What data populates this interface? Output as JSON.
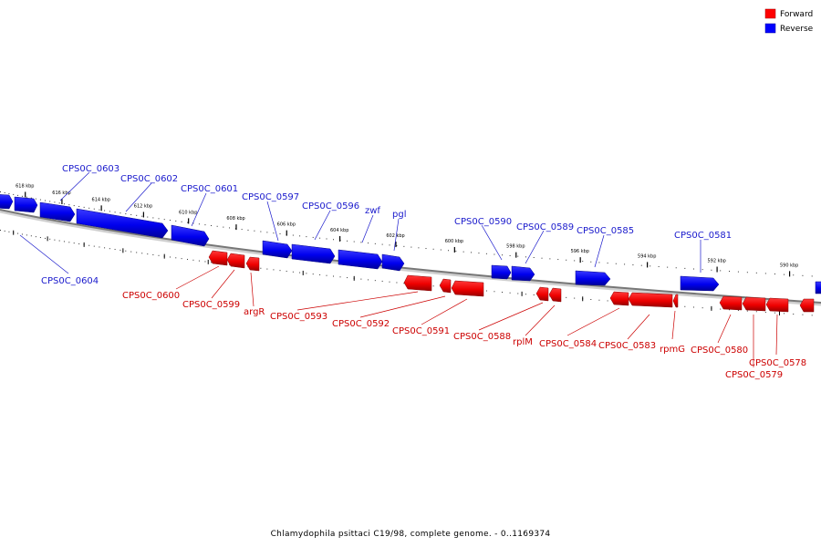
{
  "legend": {
    "forward": {
      "label": "Forward",
      "color": "#ff0000"
    },
    "reverse": {
      "label": "Reverse",
      "color": "#0000ff"
    }
  },
  "caption": "Chlamydophila psittaci C19/98, complete genome. - 0..1169374",
  "colors": {
    "forward_label": "#cc0000",
    "reverse_label": "#1a1acc",
    "backbone": "#777777"
  },
  "scale_labels": [
    "618 kbp",
    "616 kbp",
    "614 kbp",
    "612 kbp",
    "610 kbp",
    "608 kbp",
    "606 kbp",
    "604 kbp",
    "602 kbp",
    "600 kbp",
    "598 kbp",
    "596 kbp",
    "594 kbp",
    "592 kbp",
    "590 kbp"
  ],
  "genes": [
    {
      "name": "CPS0C_0603",
      "strand": "reverse"
    },
    {
      "name": "CPS0C_0602",
      "strand": "reverse"
    },
    {
      "name": "CPS0C_0601",
      "strand": "reverse"
    },
    {
      "name": "CPS0C_0597",
      "strand": "reverse"
    },
    {
      "name": "CPS0C_0596",
      "strand": "reverse"
    },
    {
      "name": "zwf",
      "strand": "reverse"
    },
    {
      "name": "pgl",
      "strand": "reverse"
    },
    {
      "name": "CPS0C_0590",
      "strand": "reverse"
    },
    {
      "name": "CPS0C_0589",
      "strand": "reverse"
    },
    {
      "name": "CPS0C_0585",
      "strand": "reverse"
    },
    {
      "name": "CPS0C_0581",
      "strand": "reverse"
    },
    {
      "name": "CPS0C_0604",
      "strand": "reverse"
    },
    {
      "name": "CPS0C_0600",
      "strand": "forward"
    },
    {
      "name": "CPS0C_0599",
      "strand": "forward"
    },
    {
      "name": "argR",
      "strand": "forward"
    },
    {
      "name": "CPS0C_0593",
      "strand": "forward"
    },
    {
      "name": "CPS0C_0592",
      "strand": "forward"
    },
    {
      "name": "CPS0C_0591",
      "strand": "forward"
    },
    {
      "name": "CPS0C_0588",
      "strand": "forward"
    },
    {
      "name": "rplM",
      "strand": "forward"
    },
    {
      "name": "CPS0C_0584",
      "strand": "forward"
    },
    {
      "name": "CPS0C_0583",
      "strand": "forward"
    },
    {
      "name": "rpmG",
      "strand": "forward"
    },
    {
      "name": "CPS0C_0580",
      "strand": "forward"
    },
    {
      "name": "CPS0C_0578",
      "strand": "forward"
    },
    {
      "name": "CPS0C_0579",
      "strand": "forward"
    }
  ]
}
